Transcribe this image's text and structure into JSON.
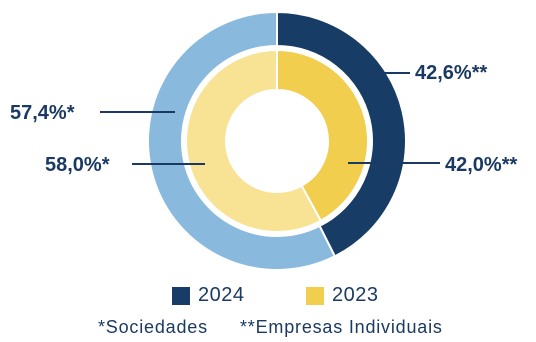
{
  "chart_data": {
    "type": "pie",
    "rings": [
      {
        "name": "2024",
        "slices": [
          {
            "label": "42,6%**",
            "value": 42.6,
            "color": "#173c66"
          },
          {
            "label": "57,4%*",
            "value": 57.4,
            "color": "#89b9dc"
          }
        ]
      },
      {
        "name": "2023",
        "slices": [
          {
            "label": "42,0%**",
            "value": 42.0,
            "color": "#f1ce4d"
          },
          {
            "label": "58,0%*",
            "value": 58.0,
            "color": "#f8e394"
          }
        ]
      }
    ],
    "legend": [
      {
        "label": "2024",
        "color": "#173c66"
      },
      {
        "label": "2023",
        "color": "#f1ce4d"
      }
    ]
  },
  "notes": {
    "sociedades": "*Sociedades",
    "individuais": "**Empresas Individuais"
  }
}
